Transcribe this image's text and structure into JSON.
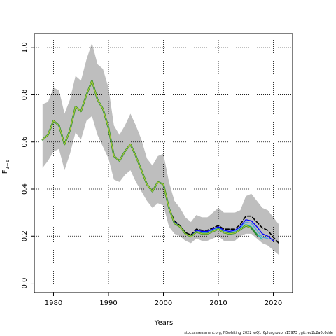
{
  "chart_data": {
    "type": "line",
    "xlabel": "Years",
    "ylabel_main": "F",
    "ylabel_sub": "2−6",
    "xlim": [
      1976.5,
      2023.5
    ],
    "ylim": [
      -0.04,
      1.06
    ],
    "x_ticks": [
      1980,
      1990,
      2000,
      2010,
      2020
    ],
    "y_ticks": [
      0.0,
      0.2,
      0.4,
      0.6,
      0.8,
      1.0
    ],
    "x_tick_labels": [
      "1980",
      "1990",
      "2000",
      "2010",
      "2020"
    ],
    "y_tick_labels": [
      "0.0",
      "0.2",
      "0.4",
      "0.6",
      "0.8",
      "1.0"
    ],
    "grid": true,
    "band": {
      "color": "#bebebe",
      "x": [
        1978,
        1979,
        1980,
        1981,
        1982,
        1983,
        1984,
        1985,
        1986,
        1987,
        1988,
        1989,
        1990,
        1991,
        1992,
        1993,
        1994,
        1995,
        1996,
        1997,
        1998,
        1999,
        2000,
        2001,
        2002,
        2003,
        2004,
        2005,
        2006,
        2007,
        2008,
        2009,
        2010,
        2011,
        2012,
        2013,
        2014,
        2015,
        2016,
        2017,
        2018,
        2019,
        2020,
        2021
      ],
      "upper": [
        0.76,
        0.77,
        0.83,
        0.82,
        0.72,
        0.78,
        0.88,
        0.86,
        0.95,
        1.02,
        0.93,
        0.91,
        0.83,
        0.67,
        0.63,
        0.67,
        0.72,
        0.67,
        0.61,
        0.53,
        0.5,
        0.54,
        0.55,
        0.43,
        0.35,
        0.32,
        0.28,
        0.26,
        0.29,
        0.28,
        0.28,
        0.3,
        0.32,
        0.3,
        0.3,
        0.3,
        0.31,
        0.37,
        0.38,
        0.35,
        0.32,
        0.31,
        0.28,
        0.25
      ],
      "lower": [
        0.49,
        0.52,
        0.56,
        0.57,
        0.48,
        0.55,
        0.64,
        0.61,
        0.69,
        0.71,
        0.63,
        0.58,
        0.53,
        0.44,
        0.43,
        0.46,
        0.48,
        0.43,
        0.39,
        0.35,
        0.32,
        0.34,
        0.33,
        0.24,
        0.21,
        0.2,
        0.18,
        0.17,
        0.19,
        0.18,
        0.18,
        0.19,
        0.2,
        0.18,
        0.18,
        0.18,
        0.2,
        0.21,
        0.21,
        0.19,
        0.17,
        0.16,
        0.14,
        0.12
      ]
    },
    "series": [
      {
        "color": "#000000",
        "dashed": true,
        "width": 1.6,
        "x": [
          1978,
          1979,
          1980,
          1981,
          1982,
          1983,
          1984,
          1985,
          1986,
          1987,
          1988,
          1989,
          1990,
          1991,
          1992,
          1993,
          1994,
          1995,
          1996,
          1997,
          1998,
          1999,
          2000,
          2001,
          2002,
          2003,
          2004,
          2005,
          2006,
          2007,
          2008,
          2009,
          2010,
          2011,
          2012,
          2013,
          2014,
          2015,
          2016,
          2017,
          2018,
          2019,
          2020,
          2021
        ],
        "values": [
          0.61,
          0.63,
          0.69,
          0.67,
          0.59,
          0.65,
          0.75,
          0.73,
          0.8,
          0.86,
          0.78,
          0.74,
          0.66,
          0.54,
          0.52,
          0.56,
          0.59,
          0.54,
          0.48,
          0.42,
          0.39,
          0.43,
          0.42,
          0.32,
          0.265,
          0.245,
          0.215,
          0.205,
          0.23,
          0.225,
          0.225,
          0.235,
          0.245,
          0.23,
          0.23,
          0.23,
          0.25,
          0.285,
          0.285,
          0.26,
          0.235,
          0.225,
          0.195,
          0.17
        ]
      },
      {
        "color": "#0000ff",
        "dashed": false,
        "width": 1.3,
        "x": [
          1978,
          1979,
          1980,
          1981,
          1982,
          1983,
          1984,
          1985,
          1986,
          1987,
          1988,
          1989,
          1990,
          1991,
          1992,
          1993,
          1994,
          1995,
          1996,
          1997,
          1998,
          1999,
          2000,
          2001,
          2002,
          2003,
          2004,
          2005,
          2006,
          2007,
          2008,
          2009,
          2010,
          2011,
          2012,
          2013,
          2014,
          2015,
          2016,
          2017,
          2018,
          2019,
          2020
        ],
        "values": [
          0.61,
          0.63,
          0.69,
          0.67,
          0.59,
          0.65,
          0.75,
          0.73,
          0.8,
          0.86,
          0.78,
          0.74,
          0.66,
          0.54,
          0.52,
          0.56,
          0.59,
          0.54,
          0.48,
          0.42,
          0.39,
          0.43,
          0.42,
          0.32,
          0.26,
          0.24,
          0.21,
          0.2,
          0.225,
          0.22,
          0.22,
          0.23,
          0.24,
          0.225,
          0.22,
          0.225,
          0.24,
          0.27,
          0.265,
          0.24,
          0.21,
          0.2,
          0.18
        ]
      },
      {
        "color": "#4fa3e0",
        "dashed": false,
        "width": 1.3,
        "x": [
          1978,
          1979,
          1980,
          1981,
          1982,
          1983,
          1984,
          1985,
          1986,
          1987,
          1988,
          1989,
          1990,
          1991,
          1992,
          1993,
          1994,
          1995,
          1996,
          1997,
          1998,
          1999,
          2000,
          2001,
          2002,
          2003,
          2004,
          2005,
          2006,
          2007,
          2008,
          2009,
          2010,
          2011,
          2012,
          2013,
          2014,
          2015,
          2016,
          2017,
          2018,
          2019
        ],
        "values": [
          0.61,
          0.63,
          0.69,
          0.67,
          0.59,
          0.65,
          0.75,
          0.73,
          0.8,
          0.86,
          0.78,
          0.74,
          0.66,
          0.54,
          0.52,
          0.56,
          0.59,
          0.54,
          0.48,
          0.42,
          0.39,
          0.43,
          0.42,
          0.32,
          0.255,
          0.24,
          0.21,
          0.2,
          0.22,
          0.215,
          0.215,
          0.225,
          0.235,
          0.22,
          0.215,
          0.22,
          0.235,
          0.26,
          0.255,
          0.225,
          0.195,
          0.19
        ]
      },
      {
        "color": "#20c0b0",
        "dashed": false,
        "width": 1.3,
        "x": [
          1978,
          1979,
          1980,
          1981,
          1982,
          1983,
          1984,
          1985,
          1986,
          1987,
          1988,
          1989,
          1990,
          1991,
          1992,
          1993,
          1994,
          1995,
          1996,
          1997,
          1998,
          1999,
          2000,
          2001,
          2002,
          2003,
          2004,
          2005,
          2006,
          2007,
          2008,
          2009,
          2010,
          2011,
          2012,
          2013,
          2014,
          2015,
          2016,
          2017,
          2018
        ],
        "values": [
          0.61,
          0.63,
          0.69,
          0.67,
          0.59,
          0.65,
          0.75,
          0.73,
          0.8,
          0.86,
          0.78,
          0.74,
          0.66,
          0.54,
          0.52,
          0.56,
          0.59,
          0.54,
          0.48,
          0.42,
          0.39,
          0.43,
          0.42,
          0.32,
          0.255,
          0.24,
          0.21,
          0.198,
          0.218,
          0.212,
          0.212,
          0.222,
          0.232,
          0.217,
          0.212,
          0.215,
          0.23,
          0.25,
          0.24,
          0.21,
          0.185
        ]
      },
      {
        "color": "#2e8b2e",
        "dashed": false,
        "width": 2.4,
        "x": [
          1978,
          1979,
          1980,
          1981,
          1982,
          1983,
          1984,
          1985,
          1986,
          1987,
          1988,
          1989,
          1990,
          1991,
          1992,
          1993,
          1994,
          1995,
          1996,
          1997,
          1998,
          1999,
          2000,
          2001,
          2002,
          2003,
          2004,
          2005,
          2006,
          2007,
          2008,
          2009,
          2010,
          2011,
          2012,
          2013,
          2014,
          2015,
          2016,
          2017
        ],
        "values": [
          0.61,
          0.63,
          0.69,
          0.67,
          0.59,
          0.65,
          0.75,
          0.73,
          0.8,
          0.86,
          0.78,
          0.74,
          0.66,
          0.54,
          0.52,
          0.56,
          0.59,
          0.54,
          0.48,
          0.42,
          0.39,
          0.43,
          0.42,
          0.32,
          0.255,
          0.24,
          0.21,
          0.198,
          0.218,
          0.21,
          0.21,
          0.22,
          0.23,
          0.215,
          0.21,
          0.213,
          0.228,
          0.245,
          0.235,
          0.205
        ]
      },
      {
        "color": "#b8d03a",
        "dashed": false,
        "width": 1.0,
        "x": [
          1978,
          1979,
          1980,
          1981,
          1982,
          1983,
          1984,
          1985,
          1986,
          1987,
          1988,
          1989,
          1990,
          1991,
          1992,
          1993,
          1994,
          1995,
          1996,
          1997,
          1998,
          1999,
          2000,
          2001,
          2002,
          2003,
          2004,
          2005,
          2006,
          2007,
          2008,
          2009,
          2010,
          2011,
          2012,
          2013,
          2014,
          2015,
          2016
        ],
        "values": [
          0.61,
          0.63,
          0.69,
          0.67,
          0.59,
          0.65,
          0.75,
          0.73,
          0.8,
          0.86,
          0.78,
          0.74,
          0.66,
          0.54,
          0.52,
          0.56,
          0.59,
          0.54,
          0.48,
          0.42,
          0.39,
          0.43,
          0.42,
          0.32,
          0.255,
          0.24,
          0.21,
          0.198,
          0.218,
          0.21,
          0.21,
          0.22,
          0.23,
          0.215,
          0.21,
          0.213,
          0.228,
          0.245,
          0.235
        ]
      }
    ]
  },
  "footer_text": "stockassessment.org, NSwhiting_2022_wQ1_6plusgroup, r15973 , git: ec2c2a0c6dde"
}
